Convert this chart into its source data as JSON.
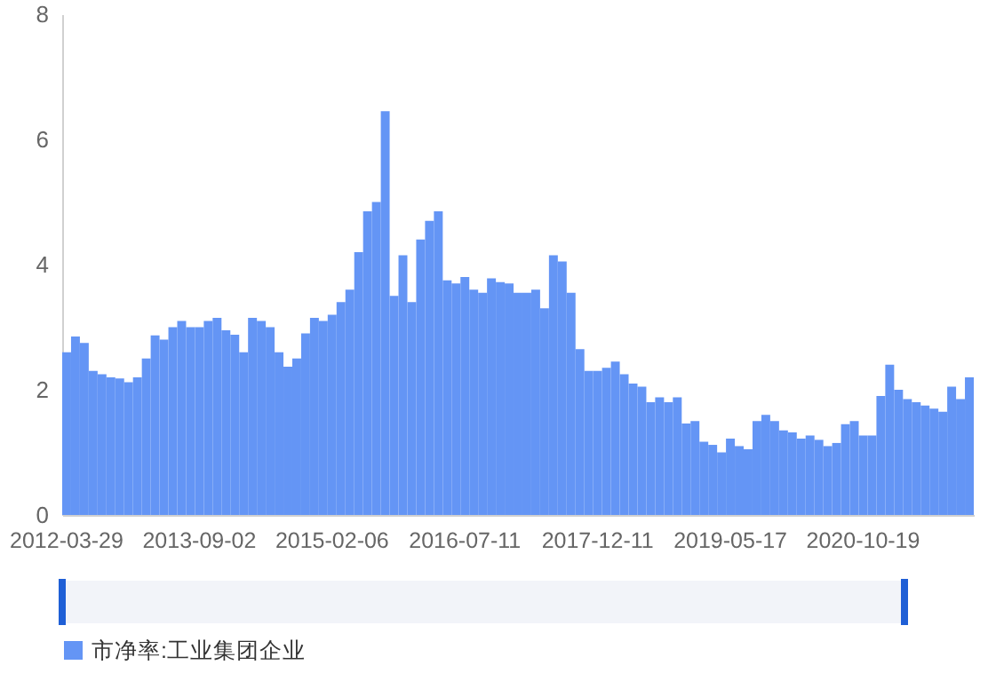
{
  "chart_data": {
    "type": "bar",
    "categories": [
      "2012-03-29",
      null,
      null,
      null,
      null,
      null,
      null,
      null,
      null,
      null,
      null,
      null,
      null,
      null,
      null,
      "2013-09-02",
      null,
      null,
      null,
      null,
      null,
      null,
      null,
      null,
      null,
      null,
      null,
      null,
      null,
      null,
      "2015-02-06",
      null,
      null,
      null,
      null,
      null,
      null,
      null,
      null,
      null,
      null,
      null,
      null,
      null,
      null,
      "2016-07-11",
      null,
      null,
      null,
      null,
      null,
      null,
      null,
      null,
      null,
      null,
      null,
      null,
      null,
      null,
      "2017-12-11",
      null,
      null,
      null,
      null,
      null,
      null,
      null,
      null,
      null,
      null,
      null,
      null,
      null,
      null,
      "2019-05-17",
      null,
      null,
      null,
      null,
      null,
      null,
      null,
      null,
      null,
      null,
      null,
      null,
      null,
      null,
      "2020-10-19",
      null,
      null,
      null,
      null,
      null,
      null,
      null,
      null,
      null,
      null,
      null,
      null
    ],
    "series": [
      {
        "name": "市净率:工业集团企业",
        "color": "#6495f5",
        "values": [
          2.6,
          2.85,
          2.75,
          2.3,
          2.25,
          2.2,
          2.18,
          2.12,
          2.2,
          2.5,
          2.87,
          2.8,
          3.0,
          3.1,
          3.0,
          3.0,
          3.1,
          3.15,
          2.95,
          2.88,
          2.6,
          3.15,
          3.1,
          3.0,
          2.6,
          2.37,
          2.5,
          2.9,
          3.15,
          3.1,
          3.2,
          3.4,
          3.6,
          4.2,
          4.85,
          5.0,
          6.45,
          3.5,
          4.15,
          3.4,
          4.4,
          4.7,
          4.85,
          3.75,
          3.7,
          3.8,
          3.6,
          3.55,
          3.78,
          3.72,
          3.7,
          3.55,
          3.55,
          3.6,
          3.3,
          4.15,
          4.05,
          3.55,
          2.65,
          2.3,
          2.3,
          2.35,
          2.45,
          2.25,
          2.1,
          2.05,
          1.8,
          1.88,
          1.8,
          1.88,
          1.46,
          1.5,
          1.17,
          1.12,
          1.0,
          1.22,
          1.1,
          1.05,
          1.5,
          1.6,
          1.5,
          1.35,
          1.32,
          1.22,
          1.27,
          1.2,
          1.1,
          1.15,
          1.45,
          1.5,
          1.27,
          1.27,
          1.9,
          2.4,
          2.0,
          1.85,
          1.8,
          1.75,
          1.7,
          1.65,
          2.05,
          1.85,
          2.2
        ]
      }
    ],
    "ylim": [
      0,
      8
    ],
    "yticks": [
      0,
      2,
      4,
      6,
      8
    ],
    "legend": "bottom left"
  }
}
